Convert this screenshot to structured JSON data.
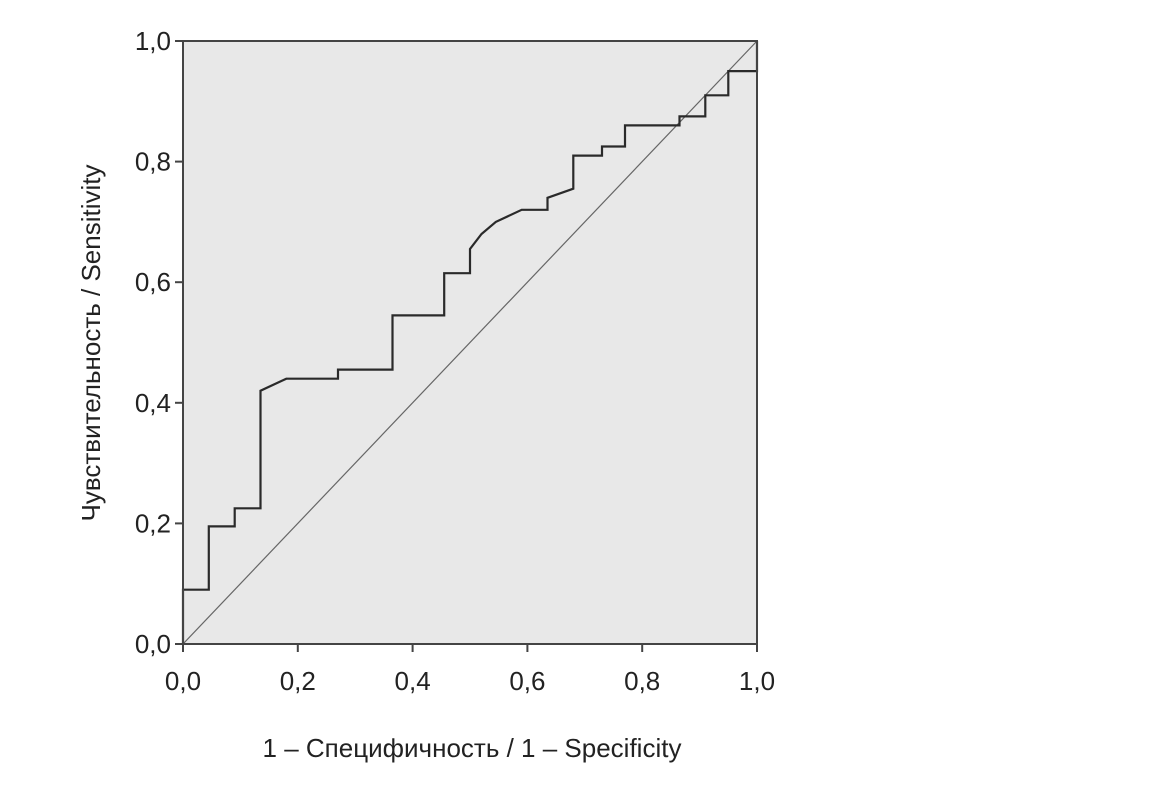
{
  "chart_data": {
    "type": "line",
    "xlabel": "1 – Специфичность / 1 – Specificity",
    "ylabel": "Чувствительность / Sensitivity",
    "xlim": [
      0,
      1
    ],
    "ylim": [
      0,
      1
    ],
    "x_ticks": [
      "0,0",
      "0,2",
      "0,4",
      "0,6",
      "0,8",
      "1,0"
    ],
    "y_ticks": [
      "0,0",
      "0,2",
      "0,4",
      "0,6",
      "0,8",
      "1,0"
    ],
    "grid": false,
    "legend": "none",
    "colors": {
      "plot_background": "#e8e8e8",
      "roc_curve": "#2a2a2a",
      "reference_line": "#666666",
      "frame": "#444444"
    },
    "series": [
      {
        "x": [
          0,
          0,
          0.045,
          0.045,
          0.09,
          0.09,
          0.135,
          0.135,
          0.18,
          0.27,
          0.27,
          0.365,
          0.365,
          0.455,
          0.455,
          0.5,
          0.5,
          0.52,
          0.545,
          0.59,
          0.635,
          0.635,
          0.68,
          0.68,
          0.73,
          0.73,
          0.77,
          0.77,
          0.865,
          0.865,
          0.91,
          0.91,
          0.95,
          0.95,
          1.0,
          1.0
        ],
        "y": [
          0,
          0.09,
          0.09,
          0.195,
          0.195,
          0.225,
          0.225,
          0.42,
          0.44,
          0.44,
          0.455,
          0.455,
          0.545,
          0.545,
          0.615,
          0.615,
          0.655,
          0.68,
          0.7,
          0.72,
          0.72,
          0.74,
          0.755,
          0.81,
          0.81,
          0.825,
          0.825,
          0.86,
          0.86,
          0.875,
          0.875,
          0.91,
          0.91,
          0.95,
          0.95,
          1.0
        ]
      },
      {
        "x": [
          0,
          1
        ],
        "y": [
          0,
          1
        ]
      }
    ]
  }
}
